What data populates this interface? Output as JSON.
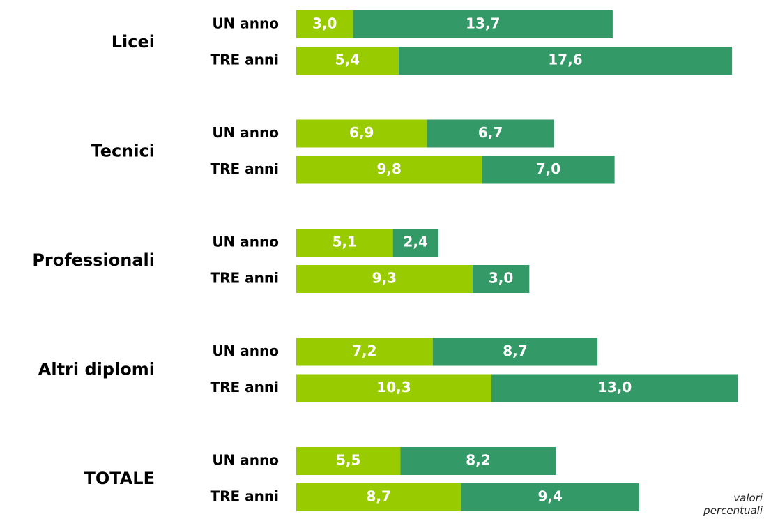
{
  "chart_data": {
    "type": "stacked-bar",
    "groups": [
      "Licei",
      "Tecnici",
      "Professionali",
      "Altri diplomi",
      "TOTALE"
    ],
    "subcategories": [
      "UN anno",
      "TRE anni"
    ],
    "series": [
      {
        "color": "#99cc00",
        "values": [
          3.0,
          5.4,
          6.9,
          9.8,
          5.1,
          9.3,
          7.2,
          10.3,
          5.5,
          8.7
        ],
        "value_labels": [
          "3,0",
          "5,4",
          "6,9",
          "9,8",
          "5,1",
          "9,3",
          "7,2",
          "10,3",
          "5,5",
          "8,7"
        ]
      },
      {
        "color": "#339966",
        "values": [
          13.7,
          17.6,
          6.7,
          7.0,
          2.4,
          3.0,
          8.7,
          13.0,
          8.2,
          9.4
        ],
        "value_labels": [
          "13,7",
          "17,6",
          "6,7",
          "7,0",
          "2,4",
          "3,0",
          "8,7",
          "13,0",
          "8,2",
          "9,4"
        ]
      }
    ],
    "note": "valori percentuali"
  }
}
